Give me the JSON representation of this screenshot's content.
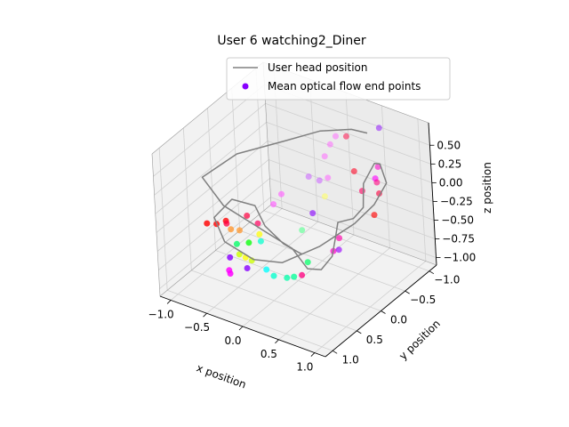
{
  "chart_data": {
    "type": "scatter",
    "projection": "3d",
    "title": "User 6 watching2_Diner",
    "xlabel": "x position",
    "ylabel": "y position",
    "zlabel": "z position",
    "xlim": [
      -1.15,
      1.15
    ],
    "ylim": [
      -1.15,
      1.15
    ],
    "zlim": [
      -1.1,
      0.8
    ],
    "xticks": [
      -1.0,
      -0.5,
      0.0,
      0.5,
      1.0
    ],
    "yticks": [
      -1.0,
      -0.5,
      0.0,
      0.5,
      1.0
    ],
    "zticks": [
      -1.0,
      -0.75,
      -0.5,
      -0.25,
      0.0,
      0.25,
      0.5
    ],
    "xtick_labels": [
      "−1.0",
      "−0.5",
      "0.0",
      "0.5",
      "1.0"
    ],
    "ytick_labels": [
      "−1.0",
      "−0.5",
      "0.0",
      "0.5",
      "1.0"
    ],
    "ztick_labels": [
      "−1.00",
      "−0.75",
      "−0.50",
      "−0.25",
      "0.00",
      "0.25",
      "0.50"
    ],
    "grid": true,
    "legend_position": "top-right",
    "legend": [
      {
        "label": "User head position",
        "kind": "line",
        "color": "#808080"
      },
      {
        "label": "Mean optical flow end points",
        "kind": "marker",
        "color": "#8800ff"
      }
    ],
    "series": [
      {
        "name": "User head position",
        "kind": "line",
        "color": "#808080",
        "points": [
          [
            0.45,
            -0.9,
            0.55
          ],
          [
            0.3,
            -0.8,
            0.6
          ],
          [
            0.0,
            -0.6,
            0.58
          ],
          [
            -0.3,
            -0.3,
            0.5
          ],
          [
            -0.7,
            0.1,
            0.4
          ],
          [
            -0.85,
            0.6,
            0.3
          ],
          [
            -0.5,
            0.7,
            0.1
          ],
          [
            -0.1,
            0.6,
            -0.1
          ],
          [
            0.3,
            0.5,
            -0.3
          ],
          [
            0.5,
            0.5,
            -0.5
          ],
          [
            0.55,
            0.3,
            -0.6
          ],
          [
            0.5,
            0.0,
            -0.6
          ],
          [
            0.35,
            -0.3,
            -0.55
          ],
          [
            0.25,
            -0.5,
            -0.5
          ],
          [
            0.4,
            -0.6,
            -0.45
          ],
          [
            0.55,
            -0.6,
            -0.25
          ],
          [
            0.5,
            -0.7,
            0.0
          ],
          [
            0.6,
            -0.8,
            0.25
          ],
          [
            0.75,
            -0.7,
            0.35
          ],
          [
            0.9,
            -0.6,
            0.2
          ],
          [
            0.85,
            -0.4,
            0.0
          ],
          [
            0.7,
            -0.2,
            -0.2
          ],
          [
            0.4,
            0.1,
            -0.45
          ],
          [
            0.0,
            0.3,
            -0.7
          ],
          [
            -0.4,
            0.3,
            -0.8
          ],
          [
            -0.8,
            0.3,
            -0.7
          ],
          [
            -1.0,
            0.2,
            -0.5
          ],
          [
            -0.95,
            -0.1,
            -0.4
          ],
          [
            -0.7,
            -0.2,
            -0.45
          ],
          [
            -0.5,
            -0.1,
            -0.6
          ],
          [
            -0.25,
            -0.1,
            -0.75
          ],
          [
            0.0,
            -0.1,
            -0.8
          ]
        ]
      },
      {
        "name": "Mean optical flow end points",
        "kind": "scatter",
        "points": [
          {
            "x": 0.55,
            "y": -1.0,
            "z": 0.6,
            "c": "#8800ff"
          },
          {
            "x": 0.72,
            "y": -0.7,
            "z": 0.3,
            "c": "#ff00cc"
          },
          {
            "x": 0.8,
            "y": -0.55,
            "z": 0.2,
            "c": "#ff0080"
          },
          {
            "x": 0.83,
            "y": -0.48,
            "z": 0.3,
            "c": "#ff00ff"
          },
          {
            "x": 0.86,
            "y": -0.5,
            "z": 0.1,
            "c": "#ff0040"
          },
          {
            "x": 0.88,
            "y": -0.35,
            "z": -0.1,
            "c": "#ff0000"
          },
          {
            "x": 0.62,
            "y": -0.5,
            "z": 0.05,
            "c": "#ff0060"
          },
          {
            "x": 0.45,
            "y": -0.6,
            "z": 0.2,
            "c": "#ff0020"
          },
          {
            "x": 0.4,
            "y": -0.3,
            "z": -0.55,
            "c": "#ff00aa"
          },
          {
            "x": 0.45,
            "y": -0.1,
            "z": -0.6,
            "c": "#ff00cc"
          },
          {
            "x": 0.35,
            "y": -0.35,
            "z": -0.75,
            "c": "#9900ff"
          },
          {
            "x": 0.15,
            "y": -0.9,
            "z": 0.4,
            "c": "#ff0040"
          },
          {
            "x": 0.0,
            "y": -0.9,
            "z": 0.35,
            "c": "#ff66ff"
          },
          {
            "x": -0.05,
            "y": -0.85,
            "z": 0.25,
            "c": "#ff66ff"
          },
          {
            "x": -0.1,
            "y": -0.8,
            "z": 0.1,
            "c": "#ff66ff"
          },
          {
            "x": 0.0,
            "y": -0.7,
            "z": -0.1,
            "c": "#ff66ff"
          },
          {
            "x": -0.05,
            "y": -0.6,
            "z": -0.1,
            "c": "#cc66ff"
          },
          {
            "x": 0.05,
            "y": -0.55,
            "z": -0.25,
            "c": "#ffff66"
          },
          {
            "x": -0.2,
            "y": -0.6,
            "z": -0.1,
            "c": "#cc66ff"
          },
          {
            "x": -0.1,
            "y": -0.5,
            "z": -0.5,
            "c": "#8800ff"
          },
          {
            "x": -0.35,
            "y": -0.25,
            "z": -0.2,
            "c": "#ff66ff"
          },
          {
            "x": -0.4,
            "y": -0.15,
            "z": -0.3,
            "c": "#ff66ff"
          },
          {
            "x": -0.05,
            "y": -0.2,
            "z": -0.55,
            "c": "#66ff99"
          },
          {
            "x": 0.15,
            "y": 0.0,
            "z": -0.8,
            "c": "#00ff66"
          },
          {
            "x": 0.2,
            "y": 0.2,
            "z": -0.85,
            "c": "#ff0080"
          },
          {
            "x": -0.5,
            "y": 0.0,
            "z": -0.75,
            "c": "#00ffcc"
          },
          {
            "x": -0.65,
            "y": 0.2,
            "z": -0.55,
            "c": "#ff9933"
          },
          {
            "x": -0.7,
            "y": 0.3,
            "z": -0.5,
            "c": "#ff9933"
          },
          {
            "x": -0.8,
            "y": 0.25,
            "z": -0.45,
            "c": "#ff0000"
          },
          {
            "x": -0.9,
            "y": 0.3,
            "z": -0.5,
            "c": "#ff0000"
          },
          {
            "x": -1.0,
            "y": 0.35,
            "z": -0.5,
            "c": "#ff0000"
          },
          {
            "x": -0.9,
            "y": 0.1,
            "z": -0.6,
            "c": "#ff0040"
          },
          {
            "x": -0.75,
            "y": -0.1,
            "z": -0.55,
            "c": "#ff0040"
          },
          {
            "x": -0.6,
            "y": -0.1,
            "z": -0.6,
            "c": "#ff0060"
          },
          {
            "x": -0.55,
            "y": -0.05,
            "z": -0.7,
            "c": "#ffff00"
          },
          {
            "x": -0.6,
            "y": 0.1,
            "z": -0.75,
            "c": "#00ff00"
          },
          {
            "x": -0.7,
            "y": 0.2,
            "z": -0.75,
            "c": "#00ff66"
          },
          {
            "x": -0.5,
            "y": 0.2,
            "z": -0.9,
            "c": "#ccff00"
          },
          {
            "x": -0.55,
            "y": 0.25,
            "z": -0.85,
            "c": "#ffff00"
          },
          {
            "x": -0.6,
            "y": 0.3,
            "z": -0.8,
            "c": "#ccff00"
          },
          {
            "x": -0.7,
            "y": 0.35,
            "z": -0.85,
            "c": "#8800ff"
          },
          {
            "x": -0.65,
            "y": 0.45,
            "z": -0.95,
            "c": "#ff00ff"
          },
          {
            "x": -0.6,
            "y": 0.5,
            "z": -0.95,
            "c": "#ff00ff"
          },
          {
            "x": -0.5,
            "y": 0.3,
            "z": -0.95,
            "c": "#8800ff"
          },
          {
            "x": -0.3,
            "y": 0.2,
            "z": -0.95,
            "c": "#00ffff"
          },
          {
            "x": -0.2,
            "y": 0.2,
            "z": -1.0,
            "c": "#00ffcc"
          },
          {
            "x": -0.05,
            "y": 0.15,
            "z": -1.0,
            "c": "#00ffaa"
          },
          {
            "x": 0.05,
            "y": 0.15,
            "z": -0.95,
            "c": "#00ff99"
          }
        ]
      }
    ]
  }
}
